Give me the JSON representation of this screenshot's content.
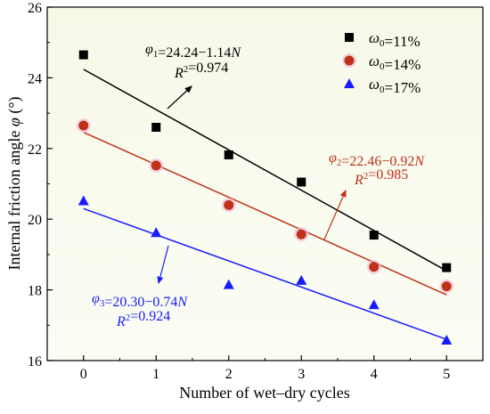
{
  "chart_data": {
    "type": "scatter",
    "xlabel": "Number of wet–dry cycles",
    "ylabel": "Internal friction angle φ (°)",
    "xlim": [
      -0.5,
      5.5
    ],
    "ylim": [
      16,
      26
    ],
    "x_ticks": [
      0,
      1,
      2,
      3,
      4,
      5
    ],
    "y_ticks": [
      16,
      18,
      20,
      22,
      24,
      26
    ],
    "grid": false,
    "legend_position": "top-right",
    "series": [
      {
        "name": "ω0=11%",
        "marker": "square",
        "color": "#000000",
        "x": [
          0,
          1,
          2,
          3,
          4,
          5
        ],
        "y": [
          24.65,
          22.6,
          21.82,
          21.05,
          19.55,
          18.63
        ],
        "fit": {
          "label": "φ1=24.24−1.14N",
          "r2_label": "R2=0.974",
          "intercept": 24.24,
          "slope": -1.14
        }
      },
      {
        "name": "ω0=14%",
        "marker": "circle",
        "color": "#c0311a",
        "x": [
          0,
          1,
          2,
          3,
          4,
          5
        ],
        "y": [
          22.65,
          21.52,
          20.4,
          19.57,
          18.65,
          18.1
        ],
        "fit": {
          "label": "φ2=22.46−0.92N",
          "r2_label": "R2=0.985",
          "intercept": 22.46,
          "slope": -0.92
        }
      },
      {
        "name": "ω0=17%",
        "marker": "triangle",
        "color": "#1a1aff",
        "x": [
          0,
          1,
          2,
          3,
          4,
          5
        ],
        "y": [
          20.52,
          19.62,
          18.15,
          18.27,
          17.58,
          16.58
        ],
        "fit": {
          "label": "φ3=20.30−0.74N",
          "r2_label": "R2=0.924",
          "intercept": 20.3,
          "slope": -0.74
        }
      }
    ]
  }
}
